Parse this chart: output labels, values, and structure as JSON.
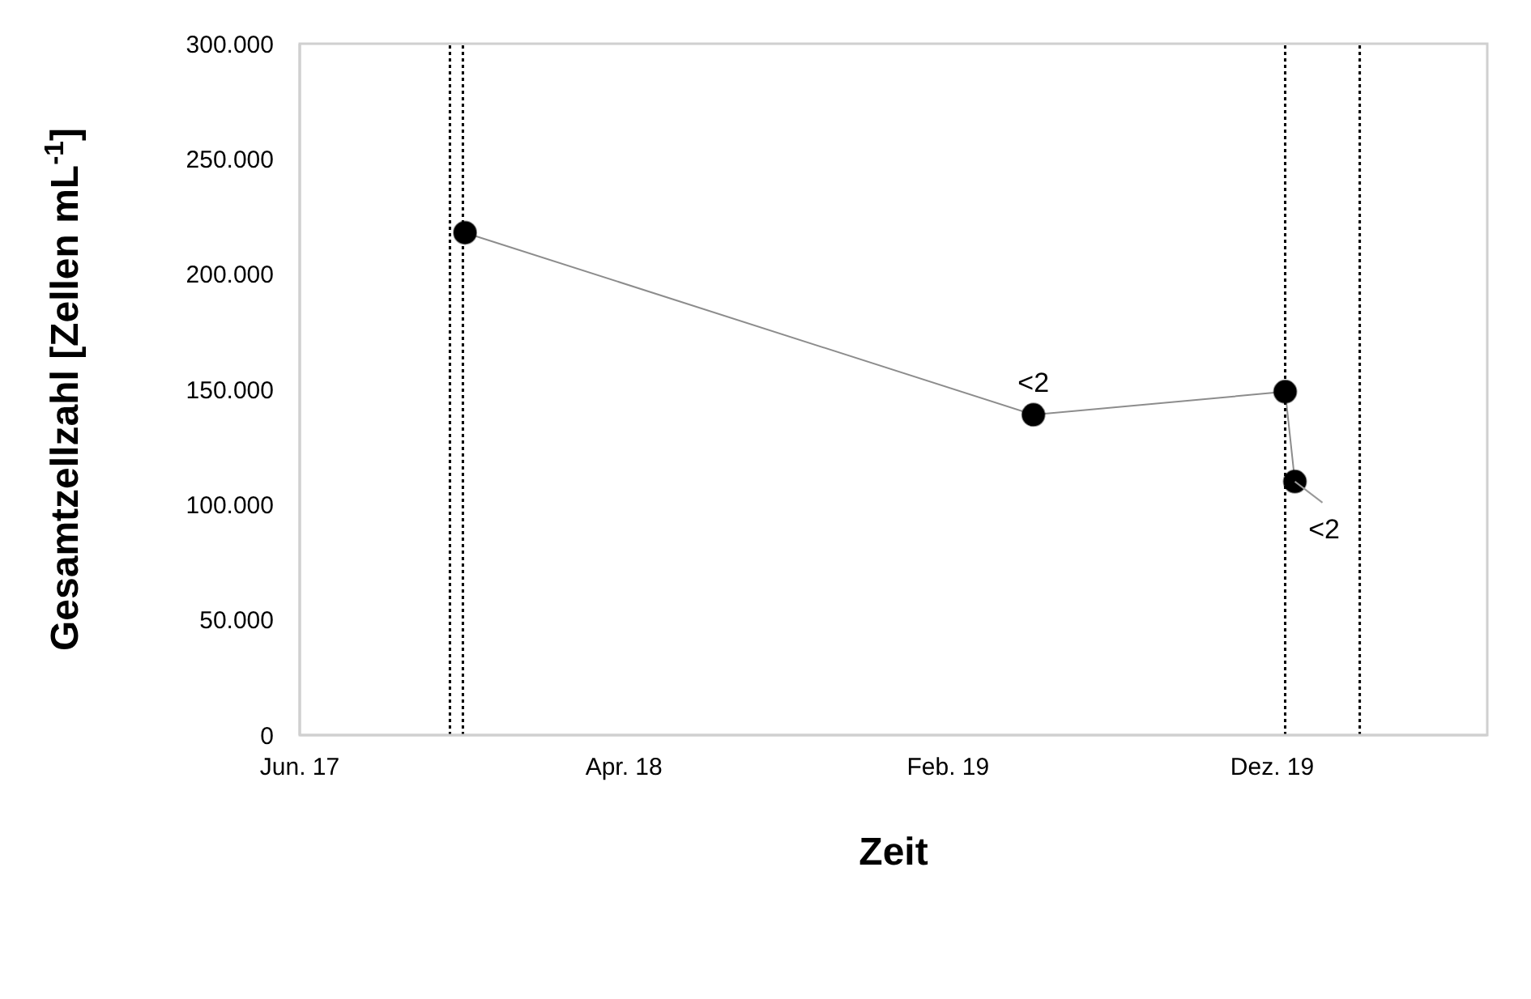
{
  "chart_data": {
    "type": "line",
    "xlabel": "Zeit",
    "ylabel": "Gesamtzellzahl [Zellen mL$^{-1}$]",
    "x": [
      "2017-11-20",
      "2019-04-30",
      "2019-12-19",
      "2019-12-28"
    ],
    "series": [
      {
        "color": "#000000",
        "values": [
          218000,
          139000,
          149000,
          110000
        ]
      }
    ],
    "xlim": [
      "2017-06-20",
      "2020-06-23"
    ],
    "xticks": [
      {
        "value": "2017-06-20",
        "label": "Jun. 17"
      },
      {
        "value": "2018-04-16",
        "label": "Apr. 18"
      },
      {
        "value": "2019-02-10",
        "label": "Feb. 19"
      },
      {
        "value": "2019-12-07",
        "label": "Dez. 19"
      }
    ],
    "ylim": [
      0,
      300000
    ],
    "yticks": [
      {
        "value": 0,
        "label": "0"
      },
      {
        "value": 50000,
        "label": "50.000"
      },
      {
        "value": 100000,
        "label": "100.000"
      },
      {
        "value": 150000,
        "label": "150.000"
      },
      {
        "value": 200000,
        "label": "200.000"
      },
      {
        "value": 250000,
        "label": "250.000"
      },
      {
        "value": 300000,
        "label": "300.000"
      }
    ],
    "ref_lines": [
      {
        "axis": "x",
        "value": "2017-11-06",
        "color": "#000000",
        "line_style": "dotted"
      },
      {
        "axis": "x",
        "value": "2017-11-18",
        "color": "#000000",
        "line_style": "dotted"
      },
      {
        "axis": "x",
        "value": "2019-12-19",
        "color": "#000000",
        "line_style": "dotted"
      },
      {
        "axis": "x",
        "value": "2020-02-26",
        "color": "#000000",
        "line_style": "dotted"
      }
    ],
    "annotations": [
      {
        "text": "<2",
        "x": "2019-04-30",
        "y": 139000
      },
      {
        "text": "<2",
        "x": "2019-12-28",
        "y": 110000
      }
    ],
    "grid": false,
    "legend": false,
    "marker": "circle",
    "line_style": "solid"
  }
}
